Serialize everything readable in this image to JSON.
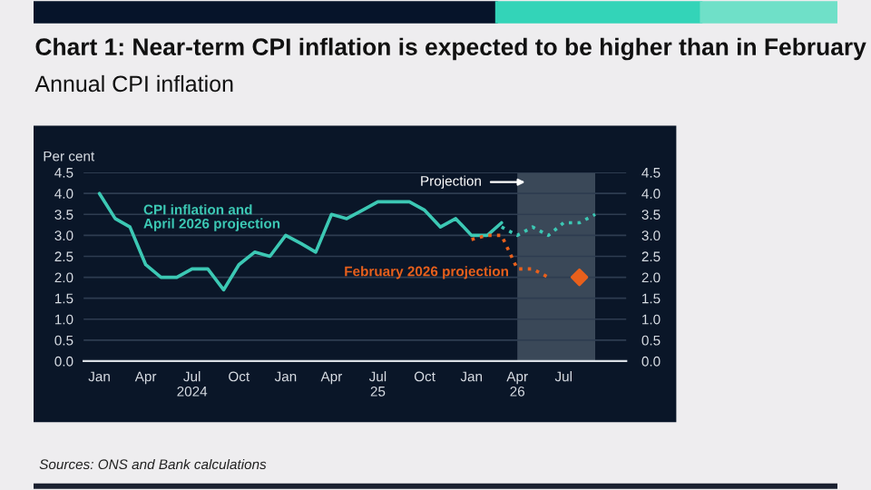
{
  "chart_data": {
    "type": "line",
    "title": "Chart 1: Near-term CPI inflation is expected to be higher than in February",
    "subtitle": "Annual CPI inflation",
    "ylabel": "Per cent",
    "annotations": [
      "Sources: ONS and Bank calculations"
    ],
    "series": [
      {
        "name": "CPI inflation and\nApril 2026 projection",
        "color": "#3cc8b4",
        "line_style": "solid",
        "x": [
          "2024-01",
          "2024-02",
          "2024-03",
          "2024-04",
          "2024-05",
          "2024-06",
          "2024-07",
          "2024-08",
          "2024-09",
          "2024-10",
          "2024-11",
          "2024-12",
          "2025-01",
          "2025-02",
          "2025-03",
          "2025-04",
          "2025-05",
          "2025-06",
          "2025-07",
          "2025-08",
          "2025-09",
          "2025-10",
          "2025-11",
          "2025-12",
          "2026-01",
          "2026-02",
          "2026-03"
        ],
        "values": [
          4.0,
          3.4,
          3.2,
          2.3,
          2.0,
          2.0,
          2.2,
          2.2,
          1.7,
          2.3,
          2.6,
          2.5,
          3.0,
          2.8,
          2.6,
          3.5,
          3.4,
          3.6,
          3.8,
          3.8,
          3.8,
          3.6,
          3.2,
          3.4,
          3.0,
          3.0,
          3.3
        ]
      },
      {
        "color": "#3cc8b4",
        "line_style": "dotted",
        "x": [
          "2026-03",
          "2026-04",
          "2026-05",
          "2026-06",
          "2026-07",
          "2026-08",
          "2026-09"
        ],
        "values": [
          3.2,
          3.0,
          3.2,
          3.0,
          3.3,
          3.3,
          3.5
        ]
      },
      {
        "name": "February 2026 projection",
        "color": "#e8601c",
        "line_style": "dotted",
        "x": [
          "2026-01",
          "2026-02",
          "2026-03",
          "2026-04",
          "2026-05",
          "2026-06"
        ],
        "values": [
          2.9,
          3.0,
          3.0,
          2.2,
          2.2,
          2.0
        ]
      },
      {
        "type": "scatter",
        "marker": "diamond",
        "color": "#e8601c",
        "x": [
          "2026-08"
        ],
        "values": [
          2.0
        ]
      }
    ],
    "bands": [
      {
        "axis": "x",
        "from": "2026-04",
        "to": "2026-09",
        "label": "Projection",
        "color": "#3a4858"
      }
    ],
    "xlim": [
      "2023-12-01",
      "2026-11-01"
    ],
    "xticks": [
      {
        "value": "2024-01",
        "label": "Jan"
      },
      {
        "value": "2024-04",
        "label": "Apr"
      },
      {
        "value": "2024-07",
        "label": "Jul\n2024"
      },
      {
        "value": "2024-10",
        "label": "Oct"
      },
      {
        "value": "2025-01",
        "label": "Jan"
      },
      {
        "value": "2025-04",
        "label": "Apr"
      },
      {
        "value": "2025-07",
        "label": "Jul\n25"
      },
      {
        "value": "2025-10",
        "label": "Oct"
      },
      {
        "value": "2026-01",
        "label": "Jan"
      },
      {
        "value": "2026-04",
        "label": "Apr\n26"
      },
      {
        "value": "2026-07",
        "label": "Jul"
      }
    ],
    "ylim": [
      0,
      4.5
    ],
    "yticks": [
      {
        "value": 0,
        "label": "0.0"
      },
      {
        "value": 0.5,
        "label": "0.5"
      },
      {
        "value": 1,
        "label": "1.0"
      },
      {
        "value": 1.5,
        "label": "1.5"
      },
      {
        "value": 2,
        "label": "2.0"
      },
      {
        "value": 2.5,
        "label": "2.5"
      },
      {
        "value": 3,
        "label": "3.0"
      },
      {
        "value": 3.5,
        "label": "3.5"
      },
      {
        "value": 4,
        "label": "4.0"
      },
      {
        "value": 4.5,
        "label": "4.5"
      }
    ],
    "y2lim": [
      0,
      4.5
    ],
    "y2ticks": [
      {
        "value": 0,
        "label": "0.0"
      },
      {
        "value": 0.5,
        "label": "0.5"
      },
      {
        "value": 1,
        "label": "1.0"
      },
      {
        "value": 1.5,
        "label": "1.5"
      },
      {
        "value": 2,
        "label": "2.0"
      },
      {
        "value": 2.5,
        "label": "2.5"
      },
      {
        "value": 3,
        "label": "3.0"
      },
      {
        "value": 3.5,
        "label": "3.5"
      },
      {
        "value": 4,
        "label": "4.0"
      },
      {
        "value": 4.5,
        "label": "4.5"
      }
    ],
    "grid": "y"
  }
}
